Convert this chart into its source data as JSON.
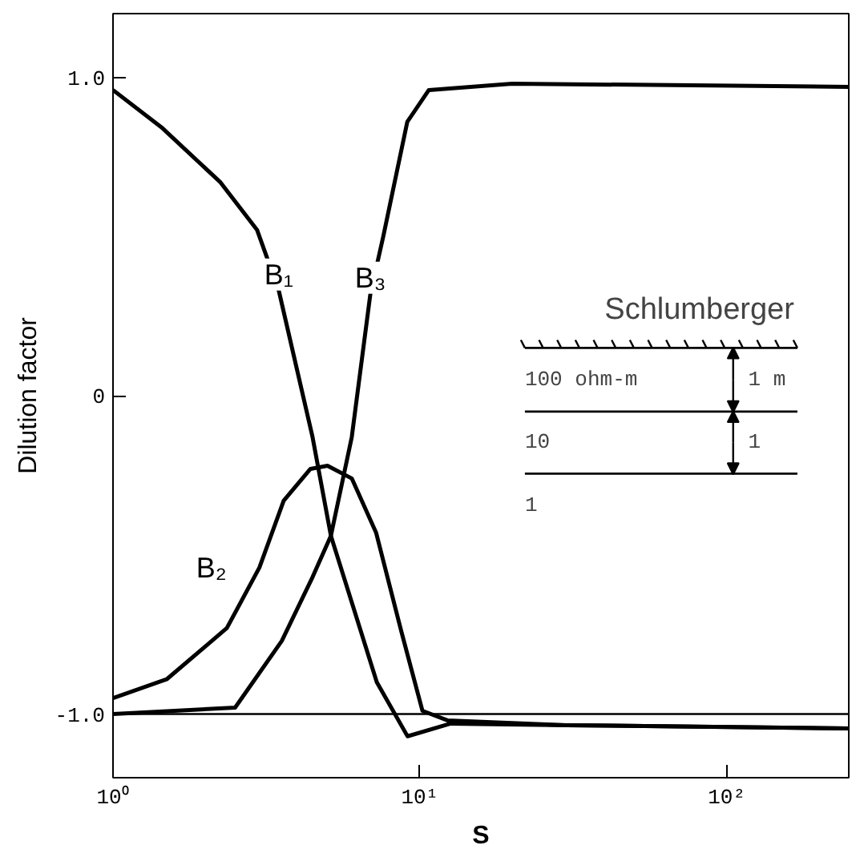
{
  "chart_data": {
    "type": "line",
    "xlabel": "S",
    "ylabel": "Dilution factor",
    "log": "x",
    "xlim": [
      1,
      250
    ],
    "ylim": [
      -1.2,
      1.2
    ],
    "xticks": [
      {
        "value": 1,
        "label": "10⁰"
      },
      {
        "value": 10,
        "label": "10¹"
      },
      {
        "value": 100,
        "label": "10²"
      }
    ],
    "yticks": [
      {
        "value": -1,
        "label": "-1.0"
      },
      0,
      {
        "value": 1,
        "label": "1.0"
      }
    ],
    "grid": false,
    "marker": "none",
    "line_style": "solid",
    "series": [
      {
        "name": "B₁",
        "color": "#000000",
        "x": [
          1,
          1.45,
          2.24,
          2.95,
          3.47,
          4.47,
          5.13,
          7.24,
          9.12,
          12.6,
          30,
          250
        ],
        "values": [
          0.96,
          0.84,
          0.67,
          0.52,
          0.33,
          -0.13,
          -0.44,
          -0.9,
          -1.07,
          -1.03,
          -1.035,
          -1.045
        ]
      },
      {
        "name": "B₂",
        "color": "#000000",
        "x": [
          1,
          1.5,
          2.35,
          3.0,
          3.6,
          4.4,
          5.0,
          6.0,
          7.2,
          8.7,
          10.2,
          12.3,
          30,
          250
        ],
        "values": [
          -0.95,
          -0.89,
          -0.73,
          -0.54,
          -0.33,
          -0.23,
          -0.22,
          -0.26,
          -0.43,
          -0.74,
          -0.99,
          -1.02,
          -1.035,
          -1.045
        ]
      },
      {
        "name": "B₃",
        "color": "#000000",
        "x": [
          1,
          2.5,
          3.55,
          4.47,
          5.13,
          6.0,
          6.9,
          7.6,
          9.1,
          10.7,
          20,
          250
        ],
        "values": [
          -1.0,
          -0.98,
          -0.77,
          -0.57,
          -0.44,
          -0.13,
          0.32,
          0.5,
          0.86,
          0.96,
          0.98,
          0.97
        ]
      }
    ],
    "ref_lines": [
      {
        "axis": "y",
        "value": -1,
        "label": null,
        "color": "#000000"
      }
    ],
    "annotations": [
      "Schlumberger",
      "100 ohm-m",
      "1 m",
      "10",
      "1",
      "1"
    ]
  }
}
